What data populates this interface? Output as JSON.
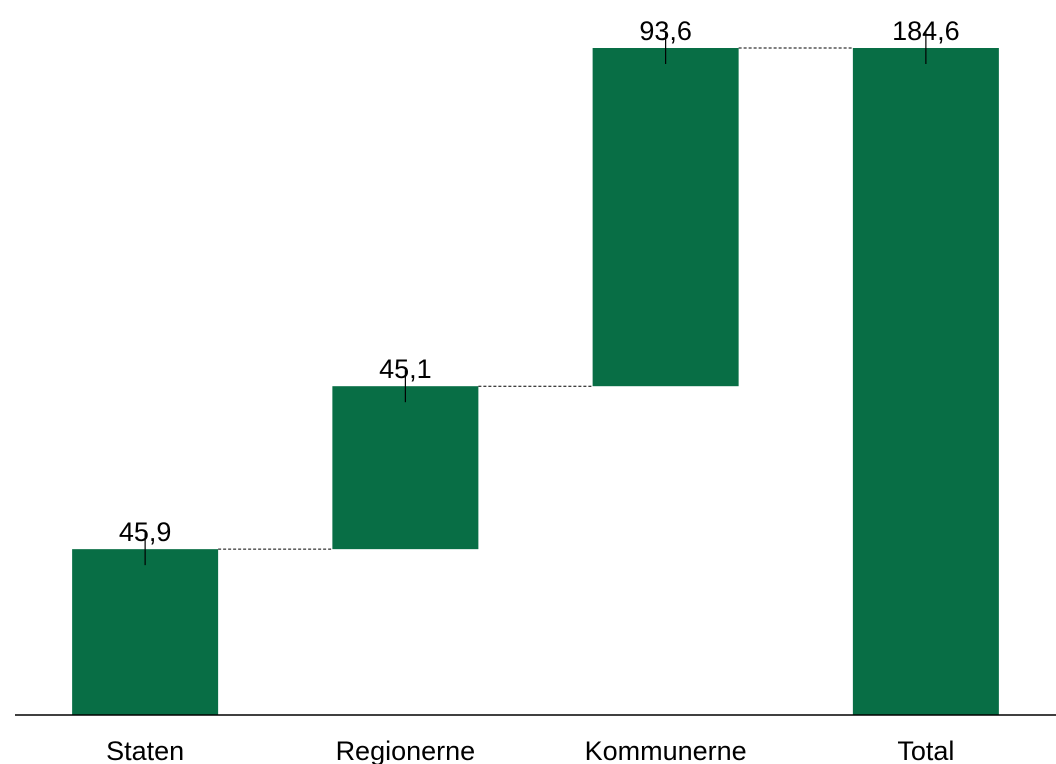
{
  "chart_data": {
    "type": "waterfall",
    "categories": [
      "Staten",
      "Regionerne",
      "Kommunerne",
      "Total"
    ],
    "values": [
      45.9,
      45.1,
      93.6,
      184.6
    ],
    "value_labels": [
      "45,9",
      "45,1",
      "93,6",
      "184,6"
    ],
    "is_total": [
      false,
      false,
      false,
      true
    ],
    "ylim": [
      0,
      184.6
    ],
    "grid": false,
    "legend": "none",
    "title": "",
    "xlabel": "",
    "ylabel": "",
    "colors": {
      "bar": "#086e45",
      "axis": "#000000",
      "connector": "#000000"
    }
  }
}
